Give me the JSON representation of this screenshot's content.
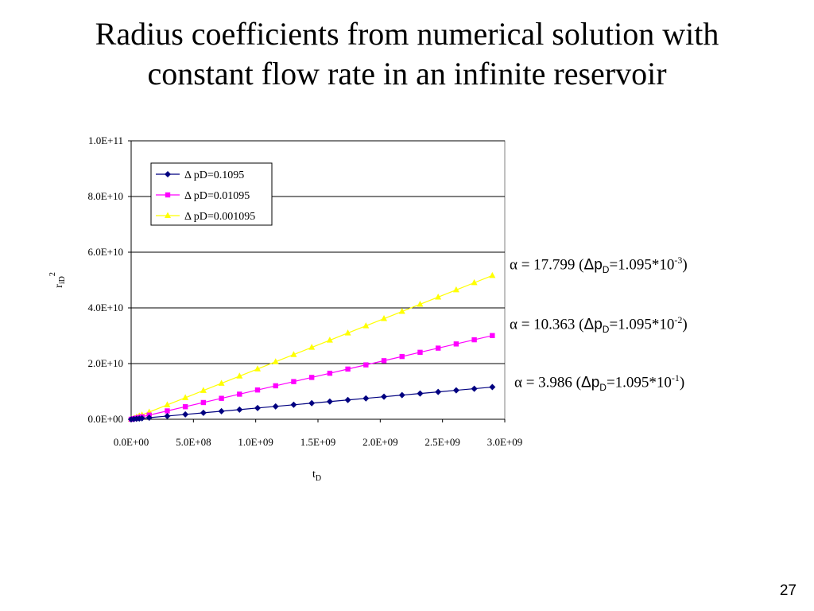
{
  "slide": {
    "title_line1": "Radius coefficients from numerical solution with",
    "title_line2": "constant flow rate in an infinite reservoir",
    "page_number": "27"
  },
  "annotations": [
    {
      "prefix": "α = 17.799 (",
      "delta_p": "Δp",
      "sub": "D",
      "mid": "=1.095*10",
      "exp": "-3",
      "suffix": ")"
    },
    {
      "prefix": "α = 10.363 (",
      "delta_p": "Δp",
      "sub": "D",
      "mid": "=1.095*10",
      "exp": "-2",
      "suffix": ")"
    },
    {
      "prefix": "α = 3.986 (",
      "delta_p": "Δp",
      "sub": "D",
      "mid": "=1.095*10",
      "exp": "-1",
      "suffix": ")"
    }
  ],
  "colors": {
    "series_1": "#000080",
    "series_2": "#ff00ff",
    "series_3": "#ffff00",
    "gridline": "#000000",
    "plot_border": "#808080"
  },
  "chart_data": {
    "type": "line",
    "title": "",
    "xlabel": "t",
    "xlabel_sub": "D",
    "ylabel": "r",
    "ylabel_sub": "iD",
    "ylabel_sup": "2",
    "xlim": [
      0,
      3000000000
    ],
    "ylim": [
      0,
      100000000000
    ],
    "x_ticks": [
      "0.0E+00",
      "5.0E+08",
      "1.0E+09",
      "1.5E+09",
      "2.0E+09",
      "2.5E+09",
      "3.0E+09"
    ],
    "y_ticks": [
      "0.0E+00",
      "2.0E+10",
      "4.0E+10",
      "6.0E+10",
      "8.0E+10",
      "1.0E+11"
    ],
    "y_grid": true,
    "legend_position": "top-left",
    "series": [
      {
        "name": "Δ pD=0.1095",
        "marker": "diamond",
        "x_max": 2900000000,
        "slope": 3.986
      },
      {
        "name": "Δ pD=0.01095",
        "marker": "square",
        "x_max": 2900000000,
        "slope": 10.363
      },
      {
        "name": "Δ pD=0.001095",
        "marker": "triangle",
        "x_max": 2900000000,
        "slope": 17.799
      }
    ]
  }
}
